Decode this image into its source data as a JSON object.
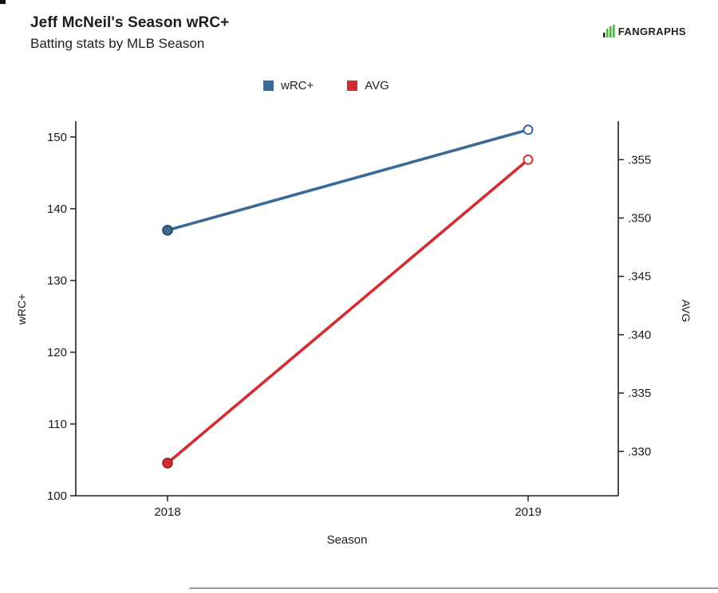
{
  "header": {
    "title": "Jeff McNeil's Season wRC+",
    "subtitle": "Batting stats by MLB Season",
    "logo_text": "FANGRAPHS"
  },
  "legend": {
    "items": [
      {
        "label": "wRC+",
        "color": "#3a6b96"
      },
      {
        "label": "AVG",
        "color": "#d22d33"
      }
    ]
  },
  "chart_data": {
    "type": "line",
    "title": "Jeff McNeil's Season wRC+",
    "subtitle": "Batting stats by MLB Season",
    "categories": [
      "2018",
      "2019"
    ],
    "xlabel": "Season",
    "series": [
      {
        "name": "wRC+",
        "axis": "left",
        "color": "#3a6b96",
        "point_stroke": "#1f3f59",
        "values": [
          137,
          151
        ],
        "markers": [
          "filled",
          "open"
        ]
      },
      {
        "name": "AVG",
        "axis": "right",
        "color": "#d22d33",
        "point_stroke": "#8e1d24",
        "values": [
          0.329,
          0.355
        ],
        "markers": [
          "filled",
          "open"
        ]
      }
    ],
    "left_axis": {
      "label": "wRC+",
      "ticks": [
        100,
        110,
        120,
        130,
        140,
        150
      ],
      "range": [
        100,
        152.2
      ]
    },
    "right_axis": {
      "label": "AVG",
      "ticks": [
        0.33,
        0.335,
        0.34,
        0.345,
        0.35,
        0.355
      ],
      "range": [
        0.3262,
        0.3583
      ]
    },
    "grid": false,
    "legend_position": "top"
  }
}
